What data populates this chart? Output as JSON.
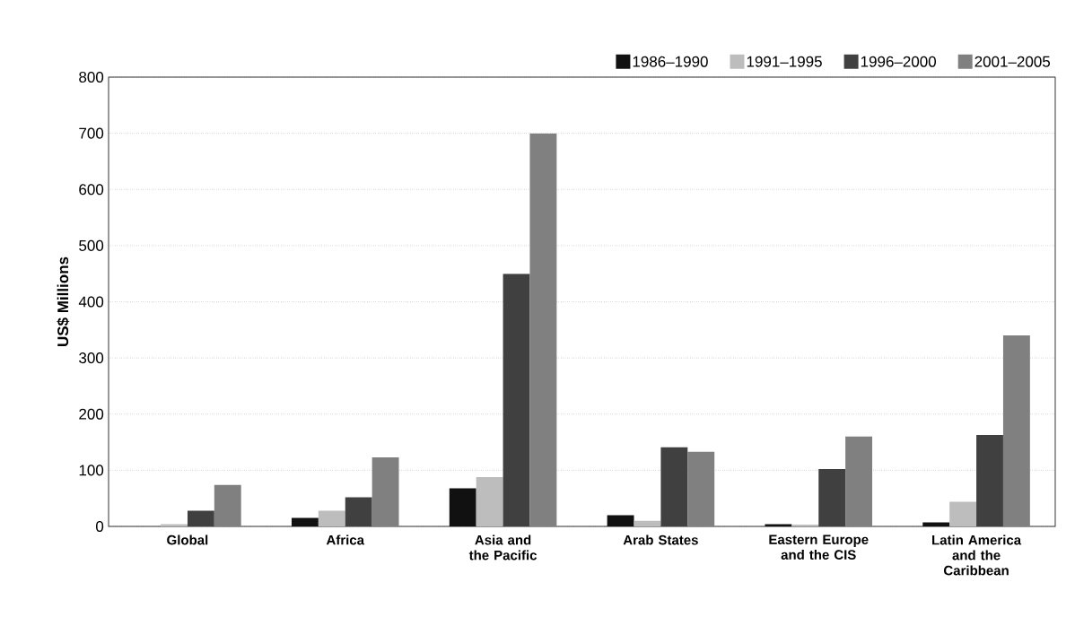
{
  "chart_data": {
    "type": "bar",
    "ylabel": "US$ Millions",
    "categories": [
      "Global",
      "Africa",
      "Asia and the Pacific",
      "Arab States",
      "Eastern Europe and the CIS",
      "Latin America and the Caribbean"
    ],
    "series": [
      {
        "name": "1986–1990",
        "color": "#111111",
        "values": [
          0,
          15,
          68,
          20,
          4,
          7
        ]
      },
      {
        "name": "1991–1995",
        "color": "#bdbdbd",
        "values": [
          4,
          28,
          88,
          10,
          3,
          44
        ]
      },
      {
        "name": "1996–2000",
        "color": "#404040",
        "values": [
          28,
          52,
          450,
          141,
          102,
          163
        ]
      },
      {
        "name": "2001–2005",
        "color": "#808080",
        "values": [
          74,
          123,
          700,
          133,
          160,
          340
        ]
      }
    ],
    "ylim": [
      0,
      800
    ],
    "yticks": [
      0,
      100,
      200,
      300,
      400,
      500,
      600,
      700,
      800
    ],
    "grid": "y",
    "legend": "top right"
  }
}
